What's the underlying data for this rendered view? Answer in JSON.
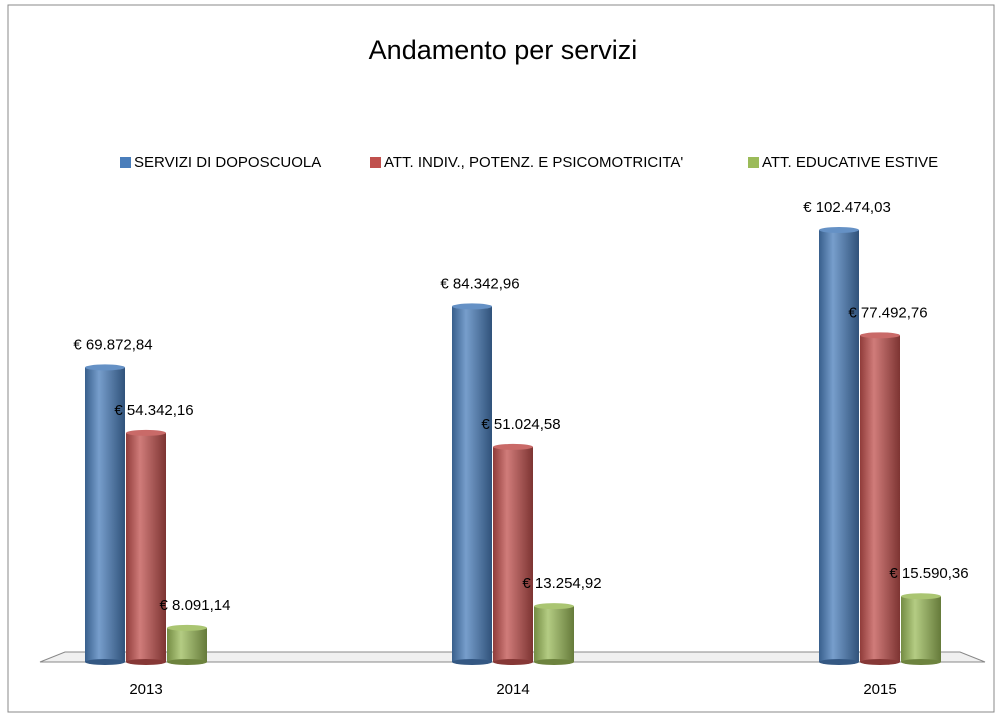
{
  "chart_data": {
    "type": "bar",
    "title": "Andamento per servizi",
    "categories": [
      "2013",
      "2014",
      "2015"
    ],
    "series": [
      {
        "name": "SERVIZI DI DOPOSCUOLA",
        "color": "#4a7ebb",
        "values": [
          69872.84,
          84342.96,
          102474.03
        ],
        "value_labels": [
          "€ 69.872,84",
          "€ 84.342,96",
          "€ 102.474,03"
        ]
      },
      {
        "name": "ATT. INDIV., POTENZ. E PSICOMOTRICITA'",
        "color": "#c0504d",
        "values": [
          54342.16,
          51024.58,
          77492.76
        ],
        "value_labels": [
          "€ 54.342,16",
          "€ 51.024,58",
          "€ 77.492,76"
        ]
      },
      {
        "name": "ATT. EDUCATIVE ESTIVE",
        "color": "#9bbb59",
        "values": [
          8091.14,
          13254.92,
          15590.36
        ],
        "value_labels": [
          "€ 8.091,14",
          "€ 13.254,92",
          "€ 15.590,36"
        ]
      }
    ],
    "legend": "top"
  }
}
